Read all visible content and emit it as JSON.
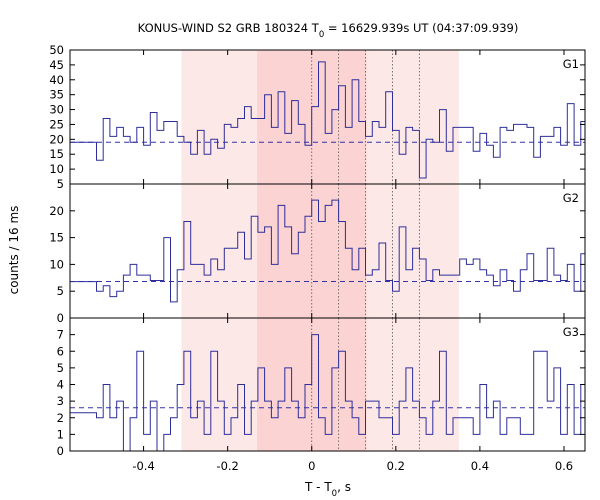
{
  "chart_data": {
    "type": "line",
    "title_main": "KONUS-WIND S2 GRB 180324 T",
    "title_sub": "0",
    "title_rest": " = 16629.939s UT (04:37:09.939)",
    "xlabel_main": "T - T",
    "xlabel_sub": "0",
    "xlabel_rest": ", s",
    "ylabel": "counts / 16 ms",
    "xlim": [
      -0.575,
      0.65
    ],
    "xticks": [
      -0.4,
      -0.2,
      0,
      0.2,
      0.4,
      0.6
    ],
    "xtick_labels": [
      "-0.4",
      "-0.2",
      "0",
      "0.2",
      "0.4",
      "0.6"
    ],
    "shaded_intervals": [
      {
        "from": -0.31,
        "to": 0.35,
        "color": "#fde8e8"
      },
      {
        "from": -0.13,
        "to": 0.13,
        "color": "#fbd3d3"
      }
    ],
    "dotted_vertical_lines": [
      0,
      0.064,
      0.128,
      0.192,
      0.256
    ],
    "panels": [
      {
        "label": "G1",
        "ylim": [
          5,
          50
        ],
        "yticks": [
          5,
          10,
          15,
          20,
          25,
          30,
          35,
          40,
          45,
          50
        ],
        "ytick_labels": [
          "5",
          "10",
          "15",
          "20",
          "25",
          "30",
          "35",
          "40",
          "45",
          "50"
        ],
        "background": 19,
        "x": [
          -0.575,
          -0.512,
          -0.496,
          -0.48,
          -0.464,
          -0.448,
          -0.432,
          -0.416,
          -0.4,
          -0.384,
          -0.368,
          -0.352,
          -0.336,
          -0.32,
          -0.304,
          -0.288,
          -0.272,
          -0.256,
          -0.24,
          -0.224,
          -0.208,
          -0.192,
          -0.176,
          -0.16,
          -0.144,
          -0.128,
          -0.112,
          -0.096,
          -0.08,
          -0.064,
          -0.048,
          -0.032,
          -0.016,
          0,
          0.016,
          0.032,
          0.048,
          0.064,
          0.08,
          0.096,
          0.112,
          0.128,
          0.144,
          0.16,
          0.176,
          0.192,
          0.208,
          0.224,
          0.24,
          0.256,
          0.272,
          0.288,
          0.304,
          0.32,
          0.336,
          0.352,
          0.368,
          0.384,
          0.4,
          0.416,
          0.432,
          0.448,
          0.464,
          0.48,
          0.496,
          0.512,
          0.528,
          0.544,
          0.56,
          0.576,
          0.592,
          0.608,
          0.624,
          0.64
        ],
        "y": [
          19,
          13,
          27,
          21,
          24,
          21,
          19,
          24,
          18,
          29,
          23,
          26,
          26,
          21,
          19,
          15,
          23,
          15,
          20,
          17,
          25,
          24,
          27,
          31,
          27,
          27,
          35,
          24,
          36,
          22,
          33,
          25,
          18,
          31,
          46,
          22,
          30,
          38,
          24,
          40,
          26,
          21,
          26,
          24,
          36,
          23,
          15,
          24,
          23,
          7,
          20,
          19,
          30,
          16,
          24,
          24,
          24,
          16,
          22,
          18,
          14,
          24,
          23,
          25,
          25,
          24,
          14,
          21,
          21,
          24,
          18,
          32,
          18,
          26
        ]
      },
      {
        "label": "G2",
        "ylim": [
          0,
          25
        ],
        "yticks": [
          0,
          5,
          10,
          15,
          20
        ],
        "ytick_labels": [
          "0",
          "5",
          "10",
          "15",
          "20"
        ],
        "background": 6.8,
        "x": [
          -0.575,
          -0.512,
          -0.496,
          -0.48,
          -0.464,
          -0.448,
          -0.432,
          -0.416,
          -0.4,
          -0.384,
          -0.368,
          -0.352,
          -0.336,
          -0.32,
          -0.304,
          -0.288,
          -0.272,
          -0.256,
          -0.24,
          -0.224,
          -0.208,
          -0.192,
          -0.176,
          -0.16,
          -0.144,
          -0.128,
          -0.112,
          -0.096,
          -0.08,
          -0.064,
          -0.048,
          -0.032,
          -0.016,
          0,
          0.016,
          0.032,
          0.048,
          0.064,
          0.08,
          0.096,
          0.112,
          0.128,
          0.144,
          0.16,
          0.176,
          0.192,
          0.208,
          0.224,
          0.24,
          0.256,
          0.272,
          0.288,
          0.304,
          0.32,
          0.336,
          0.352,
          0.368,
          0.384,
          0.4,
          0.416,
          0.432,
          0.448,
          0.464,
          0.48,
          0.496,
          0.512,
          0.528,
          0.544,
          0.56,
          0.576,
          0.592,
          0.608,
          0.624,
          0.64
        ],
        "y": [
          6.8,
          5,
          6,
          4,
          5,
          8,
          10,
          8,
          8,
          7,
          7,
          15,
          3,
          9,
          18,
          10,
          10,
          8,
          11,
          9,
          13,
          13,
          16,
          11,
          19,
          16,
          17,
          10,
          21,
          17,
          12,
          16,
          19,
          22,
          18,
          21,
          22,
          18,
          13,
          9,
          13,
          8,
          9,
          14,
          7,
          5,
          17,
          9,
          13,
          11,
          7,
          9,
          8,
          8,
          8,
          11,
          10,
          11,
          9,
          8,
          6,
          9,
          7,
          5,
          9,
          12,
          7,
          7,
          13,
          8,
          7,
          10,
          5,
          12
        ]
      },
      {
        "label": "G3",
        "ylim": [
          0,
          8
        ],
        "yticks": [
          0,
          1,
          2,
          3,
          4,
          5,
          6,
          7
        ],
        "ytick_labels": [
          "0",
          "1",
          "2",
          "3",
          "4",
          "5",
          "6",
          "7"
        ],
        "background": 2.6,
        "x": [
          -0.575,
          -0.512,
          -0.496,
          -0.48,
          -0.464,
          -0.448,
          -0.432,
          -0.416,
          -0.4,
          -0.384,
          -0.368,
          -0.352,
          -0.336,
          -0.32,
          -0.304,
          -0.288,
          -0.272,
          -0.256,
          -0.24,
          -0.224,
          -0.208,
          -0.192,
          -0.176,
          -0.16,
          -0.144,
          -0.128,
          -0.112,
          -0.096,
          -0.08,
          -0.064,
          -0.048,
          -0.032,
          -0.016,
          0,
          0.016,
          0.032,
          0.048,
          0.064,
          0.08,
          0.096,
          0.112,
          0.128,
          0.144,
          0.16,
          0.176,
          0.192,
          0.208,
          0.224,
          0.24,
          0.256,
          0.272,
          0.288,
          0.304,
          0.32,
          0.336,
          0.352,
          0.368,
          0.384,
          0.4,
          0.416,
          0.432,
          0.448,
          0.464,
          0.48,
          0.496,
          0.512,
          0.528,
          0.544,
          0.56,
          0.576,
          0.592,
          0.608,
          0.624,
          0.64
        ],
        "y": [
          2.3,
          2,
          4,
          2,
          3,
          0,
          2,
          6,
          1,
          3,
          0,
          1,
          2,
          4,
          6,
          2,
          3,
          1,
          6,
          3,
          1,
          2,
          4,
          1,
          3,
          5,
          3,
          2,
          3,
          5,
          3,
          2,
          4,
          7,
          2,
          1,
          5,
          6,
          3,
          2,
          1,
          3,
          3,
          2,
          2,
          1,
          3,
          5,
          3,
          2,
          1,
          3,
          6,
          1,
          2,
          2,
          2,
          1,
          4,
          2,
          3,
          1,
          2,
          2,
          1,
          1,
          6,
          6,
          3,
          5,
          1,
          4,
          1,
          4
        ]
      }
    ]
  }
}
